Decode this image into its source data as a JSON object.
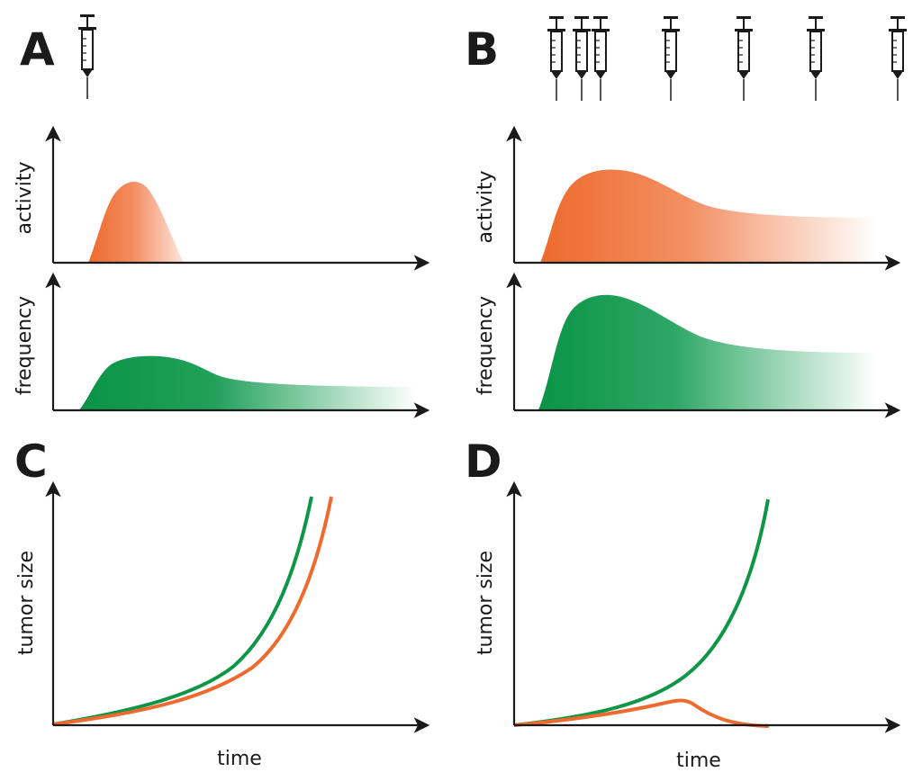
{
  "figure": {
    "panels": {
      "A": {
        "letter": "A",
        "injections": 1
      },
      "B": {
        "letter": "B",
        "injections": 7
      },
      "C": {
        "letter": "C"
      },
      "D": {
        "letter": "D"
      }
    },
    "labels": {
      "activity": "activity",
      "frequency": "frequency",
      "tumor_size": "tumor size",
      "time": "time"
    },
    "colors": {
      "orange": "#ef6a2e",
      "green": "#0c9646",
      "axis": "#1a1a1a"
    }
  }
}
